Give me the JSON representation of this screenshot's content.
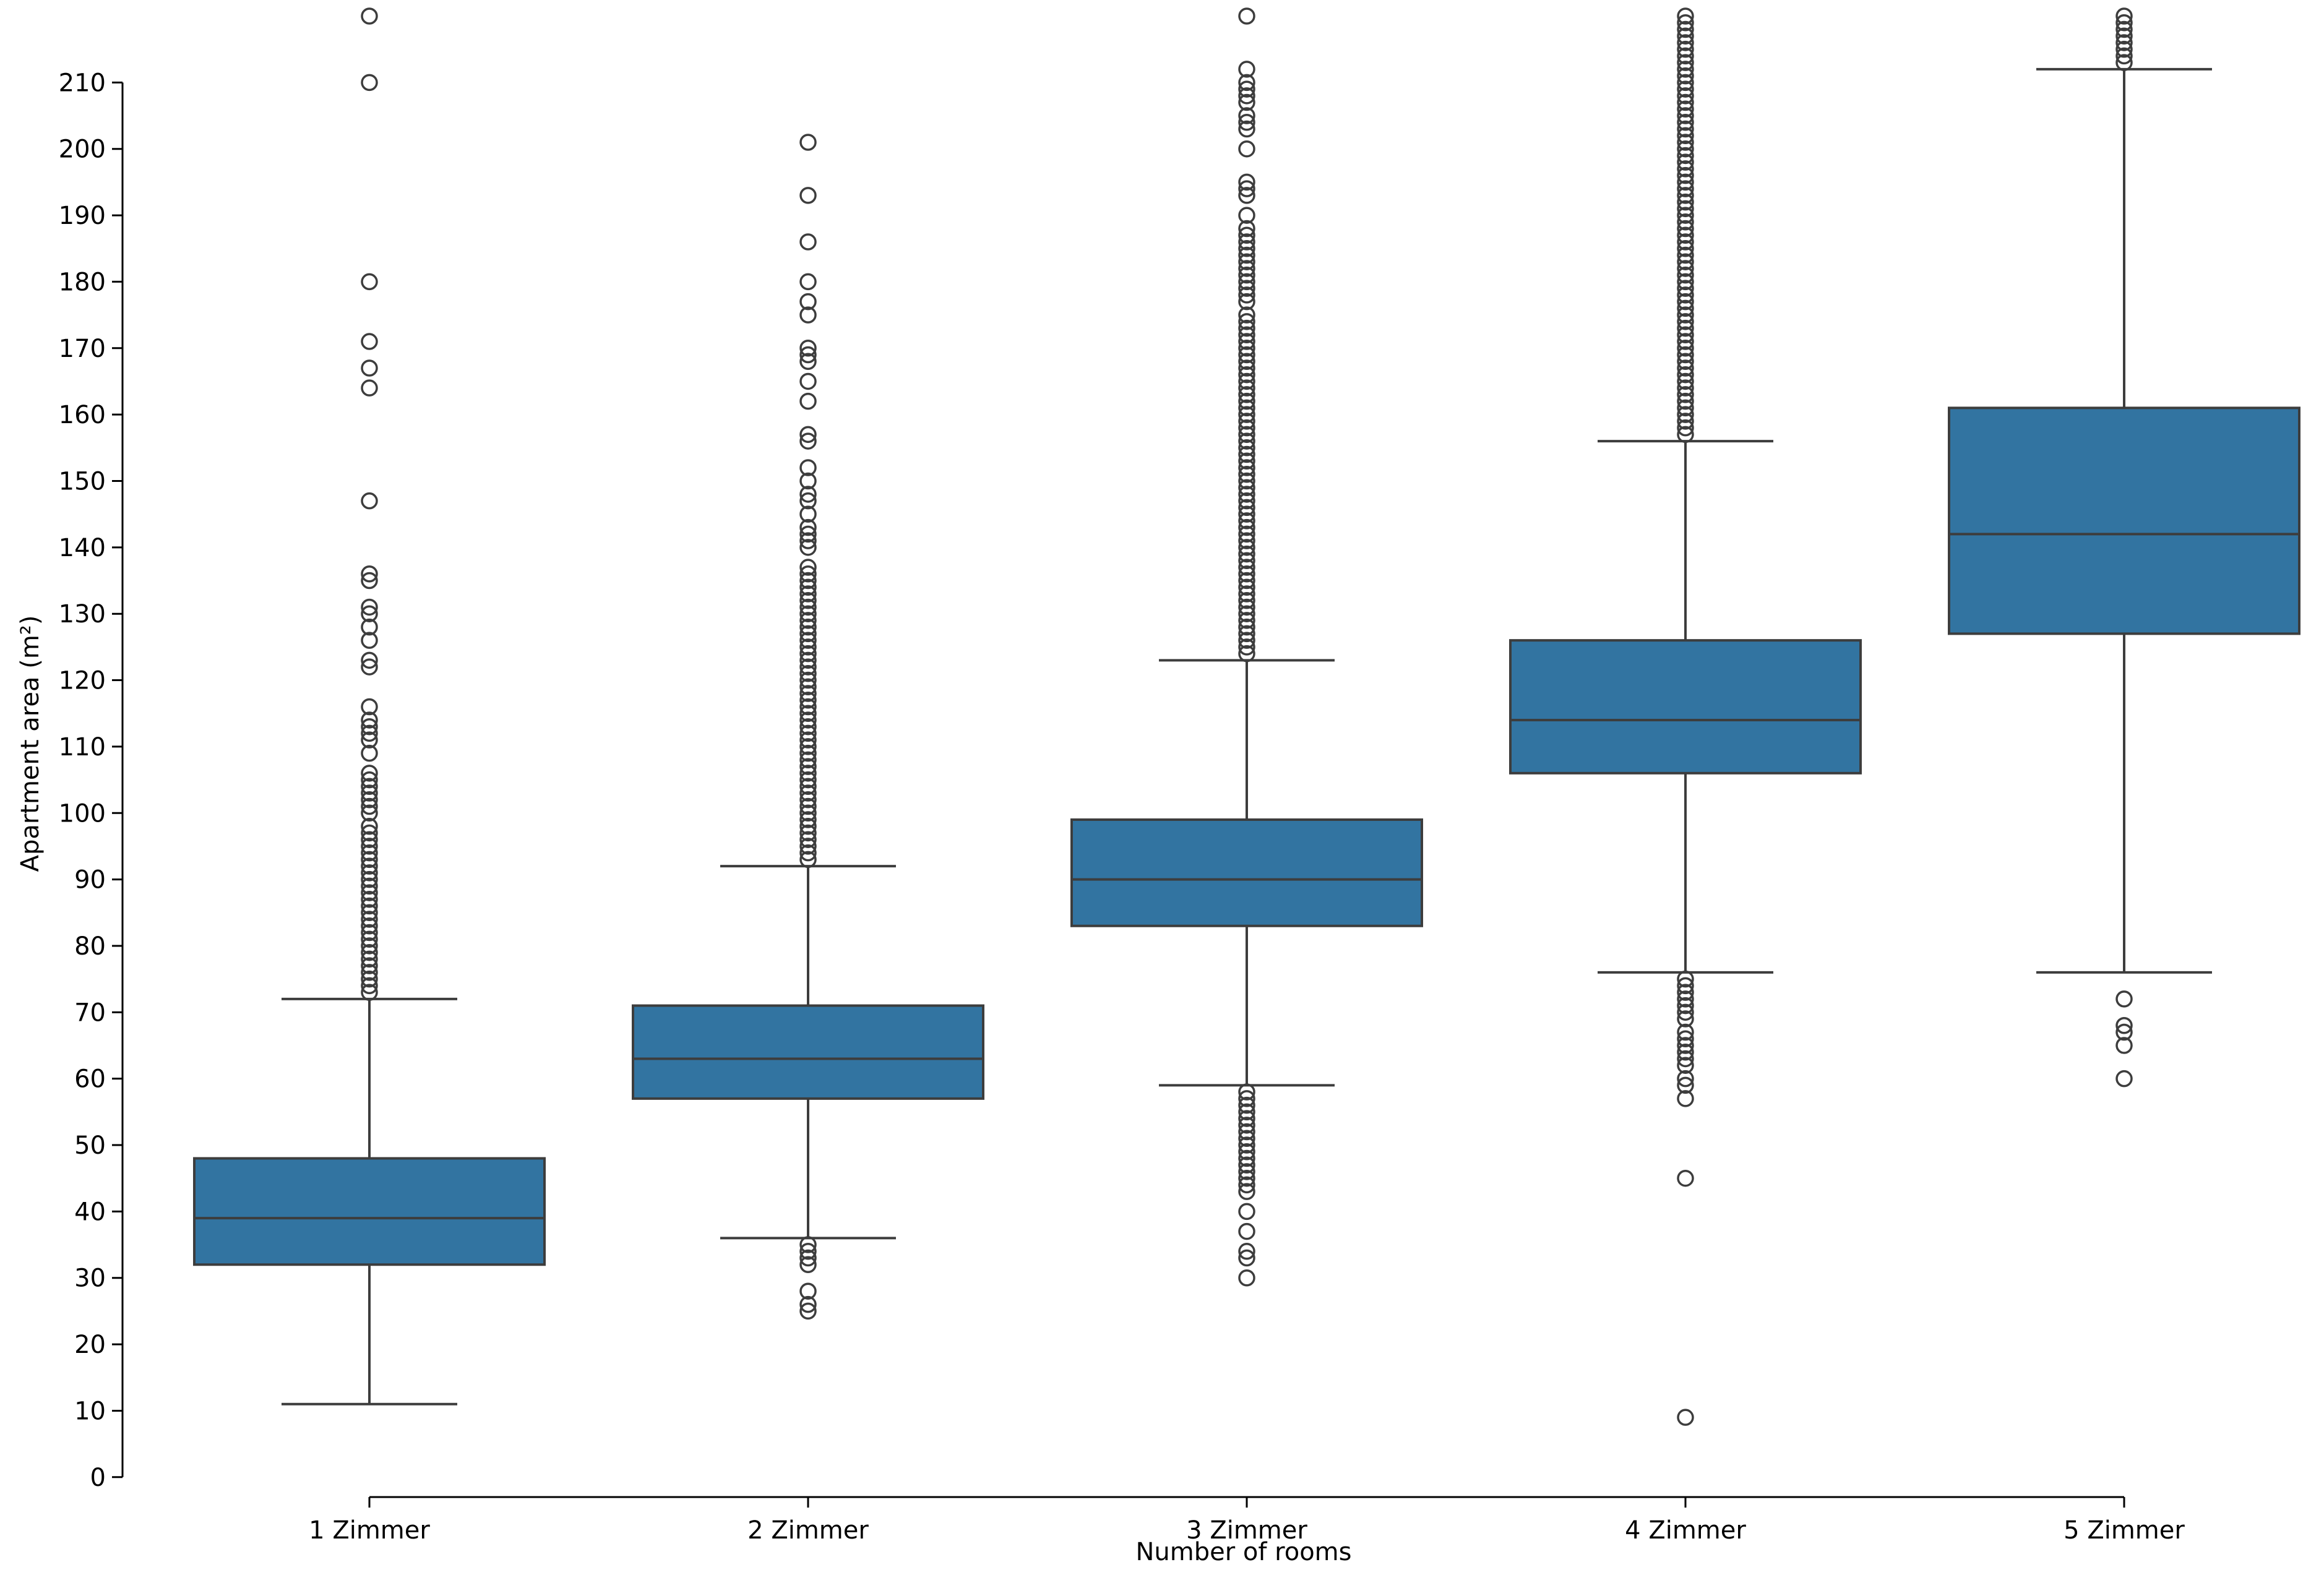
{
  "chart_data": {
    "type": "box",
    "title": "",
    "xlabel": "Number of rooms",
    "ylabel": "Apartment area (m²)",
    "ylim": [
      -3,
      220
    ],
    "yticks": [
      0,
      10,
      20,
      30,
      40,
      50,
      60,
      70,
      80,
      90,
      100,
      110,
      120,
      130,
      140,
      150,
      160,
      170,
      180,
      190,
      200,
      210
    ],
    "categories": [
      "1 Zimmer",
      "2 Zimmer",
      "3 Zimmer",
      "4 Zimmer",
      "5 Zimmer"
    ],
    "box_color": "#3274a1",
    "line_color": "#3d3d3d",
    "boxes": [
      {
        "category": "1 Zimmer",
        "whisker_low": 11,
        "q1": 32,
        "median": 39,
        "q3": 48,
        "whisker_high": 72,
        "outliers": [
          220,
          210,
          180,
          171,
          167,
          164,
          147,
          136,
          135,
          131,
          130,
          128,
          126,
          123,
          122,
          116,
          114,
          113,
          112,
          111,
          109,
          106,
          105,
          104,
          103,
          102,
          101,
          100,
          98,
          97,
          96,
          95,
          94,
          93,
          92,
          91,
          90,
          89,
          88,
          87,
          86,
          85,
          84,
          83,
          82,
          81,
          80,
          79,
          78,
          77,
          76,
          75,
          74,
          73
        ]
      },
      {
        "category": "2 Zimmer",
        "whisker_low": 36,
        "q1": 57,
        "median": 63,
        "q3": 71,
        "whisker_high": 92,
        "outliers": [
          201,
          193,
          186,
          180,
          177,
          175,
          170,
          169,
          168,
          165,
          162,
          157,
          156,
          152,
          150,
          148,
          147,
          145,
          143,
          142,
          141,
          140,
          137,
          136,
          135,
          134,
          133,
          132,
          131,
          130,
          129,
          128,
          127,
          126,
          125,
          124,
          123,
          122,
          121,
          120,
          119,
          118,
          117,
          116,
          115,
          114,
          113,
          112,
          111,
          110,
          109,
          108,
          107,
          106,
          105,
          104,
          103,
          102,
          101,
          100,
          99,
          98,
          97,
          96,
          95,
          94,
          93,
          35,
          34,
          33,
          32,
          28,
          26,
          25
        ]
      },
      {
        "category": "3 Zimmer",
        "whisker_low": 59,
        "q1": 83,
        "median": 90,
        "q3": 99,
        "whisker_high": 123,
        "outliers": [
          220,
          212,
          210,
          209,
          208,
          207,
          205,
          204,
          203,
          200,
          195,
          194,
          193,
          190,
          188,
          187,
          186,
          185,
          184,
          183,
          182,
          181,
          180,
          179,
          178,
          177,
          175,
          174,
          173,
          172,
          171,
          170,
          169,
          168,
          167,
          166,
          165,
          164,
          163,
          162,
          161,
          160,
          159,
          158,
          157,
          156,
          155,
          154,
          153,
          152,
          151,
          150,
          149,
          148,
          147,
          146,
          145,
          144,
          143,
          142,
          141,
          140,
          139,
          138,
          137,
          136,
          135,
          134,
          133,
          132,
          131,
          130,
          129,
          128,
          127,
          126,
          125,
          124,
          58,
          57,
          56,
          55,
          54,
          53,
          52,
          51,
          50,
          49,
          48,
          47,
          46,
          45,
          44,
          43,
          40,
          37,
          34,
          33,
          30
        ]
      },
      {
        "category": "4 Zimmer",
        "whisker_low": 76,
        "q1": 106,
        "median": 114,
        "q3": 126,
        "whisker_high": 156,
        "outliers": [
          220,
          219,
          218,
          217,
          216,
          215,
          214,
          213,
          212,
          211,
          210,
          209,
          208,
          207,
          206,
          205,
          204,
          203,
          202,
          201,
          200,
          199,
          198,
          197,
          196,
          195,
          194,
          193,
          192,
          191,
          190,
          189,
          188,
          187,
          186,
          185,
          184,
          183,
          182,
          181,
          180,
          179,
          178,
          177,
          176,
          175,
          174,
          173,
          172,
          171,
          170,
          169,
          168,
          167,
          166,
          165,
          164,
          163,
          162,
          161,
          160,
          159,
          158,
          157,
          75,
          74,
          73,
          72,
          71,
          70,
          69,
          67,
          66,
          65,
          64,
          63,
          62,
          60,
          59,
          57,
          45,
          9
        ]
      },
      {
        "category": "5 Zimmer",
        "whisker_low": 76,
        "q1": 127,
        "median": 142,
        "q3": 161,
        "whisker_high": 212,
        "outliers": [
          220,
          219,
          218,
          217,
          216,
          215,
          214,
          213,
          72,
          68,
          67,
          65,
          60
        ]
      }
    ]
  }
}
